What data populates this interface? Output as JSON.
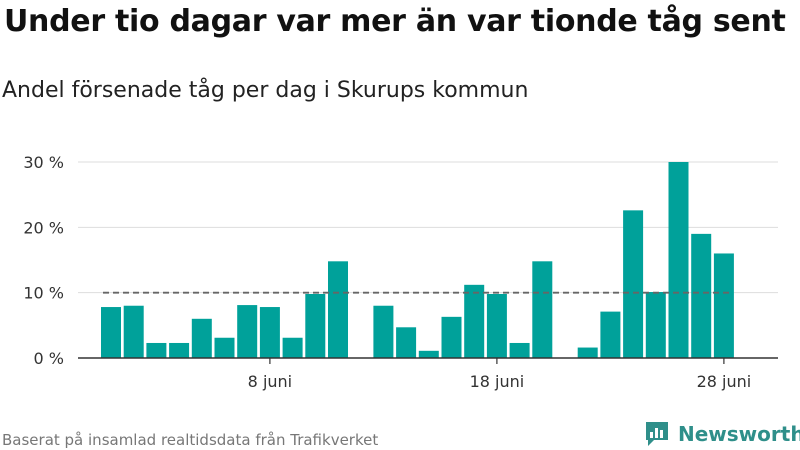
{
  "title": "Under tio dagar var mer än var tionde tåg sent",
  "subtitle": "Andel försenade tåg per dag i Skurups kommun",
  "source": "Baserat på insamlad realtidsdata från Trafikverket",
  "brand": "Newsworthy",
  "colors": {
    "bar": "#00a19a",
    "grid": "#dddddd",
    "axis": "#333333",
    "reference": "#666666",
    "brand": "#2f8f8a"
  },
  "chart_data": {
    "type": "bar",
    "categories": [
      "1 juni",
      "2 juni",
      "3 juni",
      "4 juni",
      "5 juni",
      "6 juni",
      "7 juni",
      "8 juni",
      "9 juni",
      "10 juni",
      "11 juni",
      "12 juni",
      "13 juni",
      "14 juni",
      "15 juni",
      "16 juni",
      "17 juni",
      "18 juni",
      "19 juni",
      "20 juni",
      "21 juni",
      "22 juni",
      "23 juni",
      "24 juni",
      "25 juni",
      "26 juni",
      "27 juni",
      "28 juni"
    ],
    "values": [
      7.8,
      8.0,
      2.3,
      2.3,
      6.0,
      3.1,
      8.1,
      7.8,
      3.1,
      9.8,
      14.8,
      null,
      8.0,
      4.7,
      1.1,
      6.3,
      11.2,
      9.8,
      2.3,
      14.8,
      null,
      1.6,
      7.1,
      22.6,
      10.1,
      30.0,
      19.0,
      16.0
    ],
    "reference_line": 10,
    "x_tick_labels": [
      {
        "category": "8 juni",
        "label": "8 juni"
      },
      {
        "category": "18 juni",
        "label": "18 juni"
      },
      {
        "category": "28 juni",
        "label": "28 juni"
      }
    ],
    "y_ticks": [
      0,
      10,
      20,
      30
    ],
    "y_tick_labels": [
      "0 %",
      "10 %",
      "20 %",
      "30 %"
    ],
    "ylim": [
      0,
      30
    ],
    "grid": true
  }
}
